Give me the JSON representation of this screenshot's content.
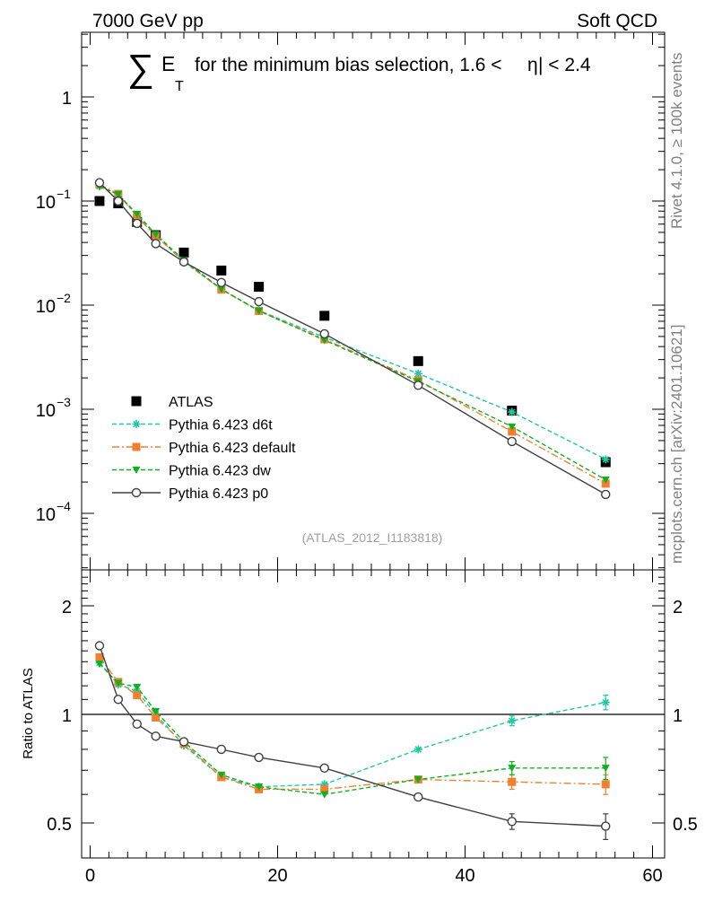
{
  "header": {
    "left": "7000 GeV pp",
    "right": "Soft QCD"
  },
  "title": {
    "sum_symbol": "∑",
    "e_main": "E",
    "e_sub": "T",
    "rest": "for the minimum bias selection, 1.6 <",
    "eta": "η",
    "tail": "| < 2.4"
  },
  "side_text": {
    "rivet": "Rivet 4.1.0, ≥ 100k events",
    "mcplots": "mcplots.cern.ch [arXiv:2401.10621]"
  },
  "analysis_id": "(ATLAS_2012_I1183818)",
  "colors": {
    "data": "#000000",
    "d6t": "#1fc8a0",
    "default": "#f08030",
    "dw": "#10b020",
    "p0": "#404040"
  },
  "chart_data": [
    {
      "type": "scatter",
      "panel": "main",
      "yscale": "log",
      "xlim": [
        -2,
        60
      ],
      "ylim": [
        3e-05,
        4.5
      ],
      "title": "∑ E_T for the minimum bias selection, 1.6 <|η| < 2.4",
      "xlabel": "",
      "ylabel": "",
      "y_tick_labels": [
        {
          "value": 1,
          "base": "1",
          "exp": ""
        },
        {
          "value": 0.1,
          "base": "10",
          "exp": "−1"
        },
        {
          "value": 0.01,
          "base": "10",
          "exp": "−2"
        },
        {
          "value": 0.001,
          "base": "10",
          "exp": "−3"
        },
        {
          "value": 0.0001,
          "base": "10",
          "exp": "−4"
        }
      ],
      "x": [
        1,
        3,
        5,
        7,
        10,
        14,
        18,
        25,
        35,
        45,
        55
      ],
      "series": [
        {
          "key": "data",
          "name": "ATLAS",
          "marker": "square",
          "line": "none",
          "values": [
            0.1,
            0.095,
            0.063,
            0.047,
            0.032,
            0.0215,
            0.015,
            0.0079,
            0.0029,
            0.00097,
            0.00031
          ]
        },
        {
          "key": "d6t",
          "name": "Pythia 6.423 d6t",
          "marker": "star",
          "line": "dashed",
          "values": [
            0.139,
            0.115,
            0.073,
            0.047,
            0.026,
            0.0142,
            0.0089,
            0.0049,
            0.0022,
            0.00094,
            0.00033
          ]
        },
        {
          "key": "default",
          "name": "Pythia 6.423 default",
          "marker": "square",
          "line": "dashdot",
          "values": [
            0.144,
            0.117,
            0.071,
            0.046,
            0.0265,
            0.0141,
            0.0088,
            0.0047,
            0.0019,
            0.00061,
            0.000193
          ]
        },
        {
          "key": "dw",
          "name": "Pythia 6.423 dw",
          "marker": "triangle-down",
          "line": "dashed",
          "values": [
            0.138,
            0.116,
            0.075,
            0.048,
            0.027,
            0.0143,
            0.0088,
            0.0046,
            0.00185,
            0.00068,
            0.00021
          ]
        },
        {
          "key": "p0",
          "name": "Pythia 6.423 p0",
          "marker": "circle-open",
          "line": "solid",
          "values": [
            0.15,
            0.1,
            0.061,
            0.039,
            0.026,
            0.0165,
            0.0108,
            0.0053,
            0.0017,
            0.00049,
            0.000152
          ]
        }
      ]
    },
    {
      "type": "line",
      "panel": "ratio",
      "yscale": "log",
      "xlim": [
        -2,
        60
      ],
      "ylim": [
        0.4,
        2.5
      ],
      "ylabel": "Ratio to ATLAS",
      "xlabel": "",
      "x_ticks": [
        0,
        20,
        40,
        60
      ],
      "y_ticks": [
        {
          "value": 0.5,
          "label": "0.5"
        },
        {
          "value": 1,
          "label": "1"
        },
        {
          "value": 2,
          "label": "2"
        }
      ],
      "reference": 1,
      "x": [
        1,
        3,
        5,
        7,
        10,
        14,
        18,
        25,
        35,
        45,
        55
      ],
      "series": [
        {
          "key": "d6t",
          "name": "Pythia 6.423 d6t",
          "values": [
            1.39,
            1.21,
            1.16,
            1.0,
            0.82,
            0.67,
            0.63,
            0.64,
            0.8,
            0.96,
            1.08
          ],
          "errors": [
            0.01,
            0.01,
            0.01,
            0.01,
            0.01,
            0.01,
            0.01,
            0.01,
            0.01,
            0.03,
            0.05
          ]
        },
        {
          "key": "default",
          "name": "Pythia 6.423 default",
          "values": [
            1.44,
            1.23,
            1.13,
            0.98,
            0.83,
            0.67,
            0.62,
            0.62,
            0.66,
            0.65,
            0.64
          ],
          "errors": [
            0.01,
            0.01,
            0.01,
            0.01,
            0.01,
            0.01,
            0.01,
            0.01,
            0.01,
            0.03,
            0.04
          ]
        },
        {
          "key": "dw",
          "name": "Pythia 6.423 dw",
          "values": [
            1.38,
            1.22,
            1.19,
            1.02,
            0.84,
            0.68,
            0.63,
            0.6,
            0.66,
            0.71,
            0.71
          ],
          "errors": [
            0.01,
            0.01,
            0.01,
            0.01,
            0.01,
            0.01,
            0.01,
            0.01,
            0.01,
            0.03,
            0.05
          ]
        },
        {
          "key": "p0",
          "name": "Pythia 6.423 p0",
          "values": [
            1.55,
            1.1,
            0.94,
            0.87,
            0.84,
            0.8,
            0.76,
            0.71,
            0.59,
            0.505,
            0.49
          ],
          "errors": [
            0.01,
            0.01,
            0.01,
            0.01,
            0.01,
            0.01,
            0.01,
            0.01,
            0.01,
            0.025,
            0.04
          ]
        }
      ]
    }
  ]
}
